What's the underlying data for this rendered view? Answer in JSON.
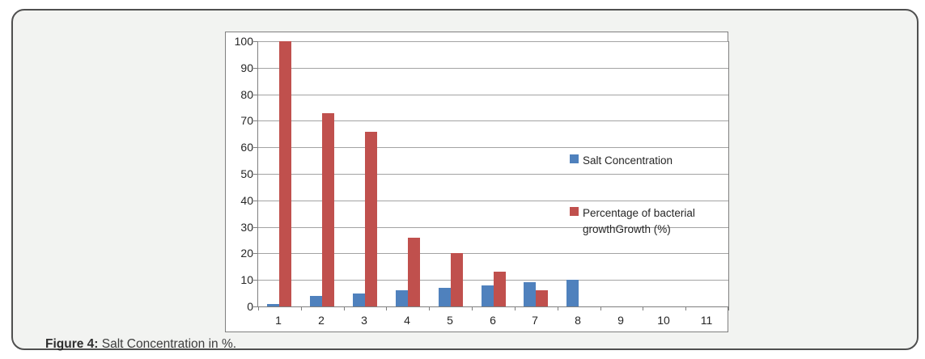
{
  "figure": {
    "caption": {
      "prefix": "Figure 4:",
      "text": " Salt Concentration in %."
    }
  },
  "chart_data": {
    "type": "bar",
    "title": "",
    "xlabel": "",
    "ylabel": "",
    "categories": [
      "1",
      "2",
      "3",
      "4",
      "5",
      "6",
      "7",
      "8",
      "9",
      "10",
      "11"
    ],
    "series": [
      {
        "name": "Salt Concentration",
        "color": "#4f81bd",
        "values": [
          1,
          4,
          5,
          6,
          7,
          8,
          9,
          10,
          null,
          null,
          null
        ]
      },
      {
        "name": "Percentage of bacterial growthGrowth (%)",
        "color": "#c0504d",
        "values": [
          100,
          73,
          66,
          26,
          20,
          13,
          6,
          null,
          null,
          null,
          null
        ]
      }
    ],
    "ylim": [
      0,
      100
    ],
    "yticks": [
      0,
      10,
      20,
      30,
      40,
      50,
      60,
      70,
      80,
      90,
      100
    ],
    "grid": true,
    "legend_position": "inside-right",
    "colors": {
      "gridline": "#a3a3a3",
      "axis": "#7f7f7f",
      "plot_background": "#ffffff",
      "figure_background": "#f2f3f1",
      "figure_border": "#4f4f4f",
      "chart_border": "#7f7f7f",
      "label_text": "#262626"
    }
  }
}
